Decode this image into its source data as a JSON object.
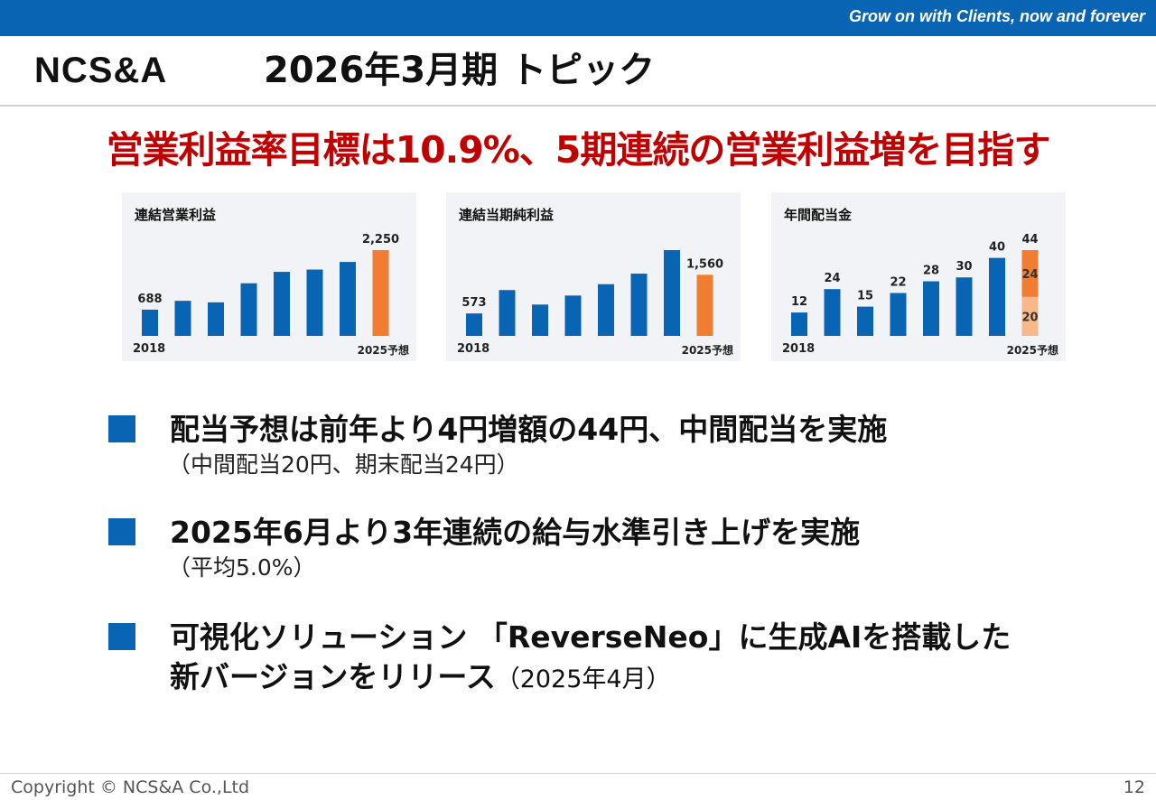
{
  "header": {
    "tagline": "Grow on with Clients, now and forever",
    "logo_text": "NCS&A",
    "title": "2026年3月期 トピック"
  },
  "headline": "営業利益率目標は10.9%、5期連続の営業利益増を目指す",
  "colors": {
    "brand_blue": "#0a64b4",
    "forecast_orange": "#f07d32",
    "forecast_light": "#f8b98a",
    "headline_red": "#c00000"
  },
  "chart_data": [
    {
      "type": "bar",
      "title": "連結営業利益",
      "categories": [
        "2018",
        "",
        "",
        "",
        "",
        "",
        "",
        "2025予想"
      ],
      "values": [
        688,
        920,
        880,
        1380,
        1680,
        1740,
        1940,
        2250
      ],
      "labels": [
        "688",
        "",
        "",
        "",
        "",
        "",
        "",
        "2,250"
      ],
      "forecast_index": 7
    },
    {
      "type": "bar",
      "title": "連結当期純利益",
      "categories": [
        "2018",
        "",
        "",
        "",
        "",
        "",
        "",
        "2025予想"
      ],
      "values": [
        573,
        1170,
        800,
        1030,
        1320,
        1590,
        2190,
        1560
      ],
      "labels": [
        "573",
        "",
        "",
        "",
        "",
        "",
        "",
        "1,560"
      ],
      "forecast_index": 7
    },
    {
      "type": "bar",
      "title": "年間配当金",
      "categories": [
        "2018",
        "",
        "",
        "",
        "",
        "",
        "",
        "2025予想"
      ],
      "values": [
        12,
        24,
        15,
        22,
        28,
        30,
        40,
        44
      ],
      "labels": [
        "12",
        "24",
        "15",
        "22",
        "28",
        "30",
        "40",
        "44"
      ],
      "forecast_index": 7,
      "forecast_stack": [
        {
          "value": 20,
          "label": "20"
        },
        {
          "value": 24,
          "label": "24"
        }
      ]
    }
  ],
  "bullets": [
    {
      "main": "配当予想は前年より4円増額の44円、中間配当を実施",
      "sub": "（中間配当20円、期末配当24円）"
    },
    {
      "main": "2025年6月より3年連続の給与水準引き上げを実施",
      "sub": "（平均5.0%）"
    },
    {
      "main": "可視化ソリューション 「ReverseNeo」に生成AIを搭載した",
      "main2": "新バージョンをリリース",
      "sub": "（2025年4月）"
    }
  ],
  "footer": {
    "copyright": "Copyright © NCS&A Co.,Ltd",
    "page": "12"
  }
}
